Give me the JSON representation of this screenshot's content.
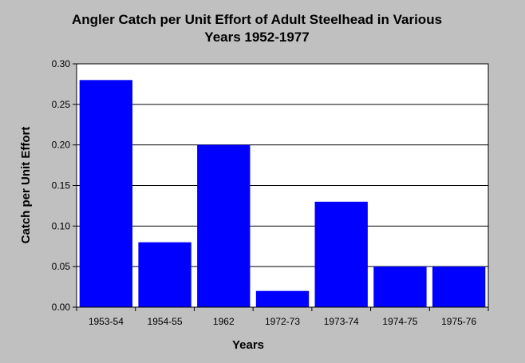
{
  "chart_data": {
    "type": "bar",
    "title_lines": [
      "Angler Catch per Unit Effort of Adult Steelhead in Various",
      "Years 1952-1977"
    ],
    "xlabel": "Years",
    "ylabel": "Catch per Unit Effort",
    "categories": [
      "1953-54",
      "1954-55",
      "1962",
      "1972-73",
      "1973-74",
      "1974-75",
      "1975-76"
    ],
    "values": [
      0.28,
      0.08,
      0.2,
      0.02,
      0.13,
      0.05,
      0.05
    ],
    "ylim": [
      0,
      0.3
    ],
    "yticks": [
      "0.00",
      "0.05",
      "0.10",
      "0.15",
      "0.20",
      "0.25",
      "0.30"
    ],
    "grid": true,
    "bar_color": "#0000ff",
    "plot_background": "#ffffff",
    "page_background": "#c0c0c0"
  }
}
